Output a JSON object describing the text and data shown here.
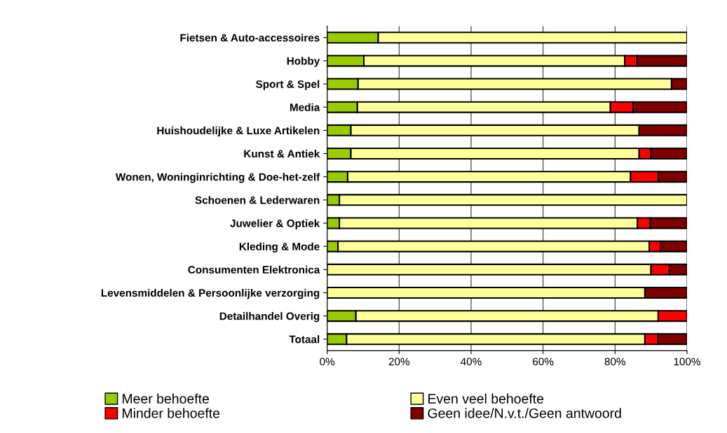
{
  "chart_data": {
    "type": "bar",
    "orientation": "horizontal",
    "stacked": true,
    "categories": [
      "Fietsen & Auto-accessoires",
      "Hobby",
      "Sport & Spel",
      "Media",
      "Huishoudelijke & Luxe Artikelen",
      "Kunst & Antiek",
      "Wonen, Woninginrichting & Doe-het-zelf",
      "Schoenen & Lederwaren",
      "Juwelier & Optiek",
      "Kleding & Mode",
      "Consumenten Elektronica",
      "Levensmiddelen & Persoonlijke verzorging",
      "Detailhandel Overig",
      "Totaal"
    ],
    "series": [
      {
        "name": "Meer behoefte",
        "color": "#99cc00",
        "values": [
          14.2,
          10.2,
          8.6,
          8.4,
          6.6,
          6.6,
          5.7,
          3.4,
          3.4,
          3.0,
          0,
          0,
          8.0,
          5.4
        ]
      },
      {
        "name": "Even veel behoefte",
        "color": "#ffff99",
        "values": [
          85.8,
          72.5,
          87.1,
          70.3,
          80.1,
          80.1,
          78.6,
          96.6,
          82.8,
          86.5,
          90.0,
          88.3,
          84.0,
          82.9
        ]
      },
      {
        "name": "Minder behoefte",
        "color": "#ff0000",
        "values": [
          0,
          3.5,
          0,
          6.3,
          0,
          3.3,
          7.8,
          0,
          3.6,
          3.2,
          5.1,
          0,
          8.0,
          3.7
        ]
      },
      {
        "name": "Geen idee/N.v.t./Geen antwoord",
        "color": "#800000",
        "values": [
          0,
          13.8,
          4.3,
          15.0,
          13.3,
          10.0,
          7.9,
          0,
          10.2,
          7.3,
          4.9,
          11.7,
          0,
          8.0
        ]
      }
    ],
    "xlim": [
      0,
      100
    ],
    "xticks": [
      {
        "value": 0,
        "label": "0%"
      },
      {
        "value": 20,
        "label": "20%"
      },
      {
        "value": 40,
        "label": "40%"
      },
      {
        "value": 60,
        "label": "60%"
      },
      {
        "value": 80,
        "label": "80%"
      },
      {
        "value": 100,
        "label": "100%"
      }
    ],
    "grid": "x",
    "legend": "bottom"
  }
}
